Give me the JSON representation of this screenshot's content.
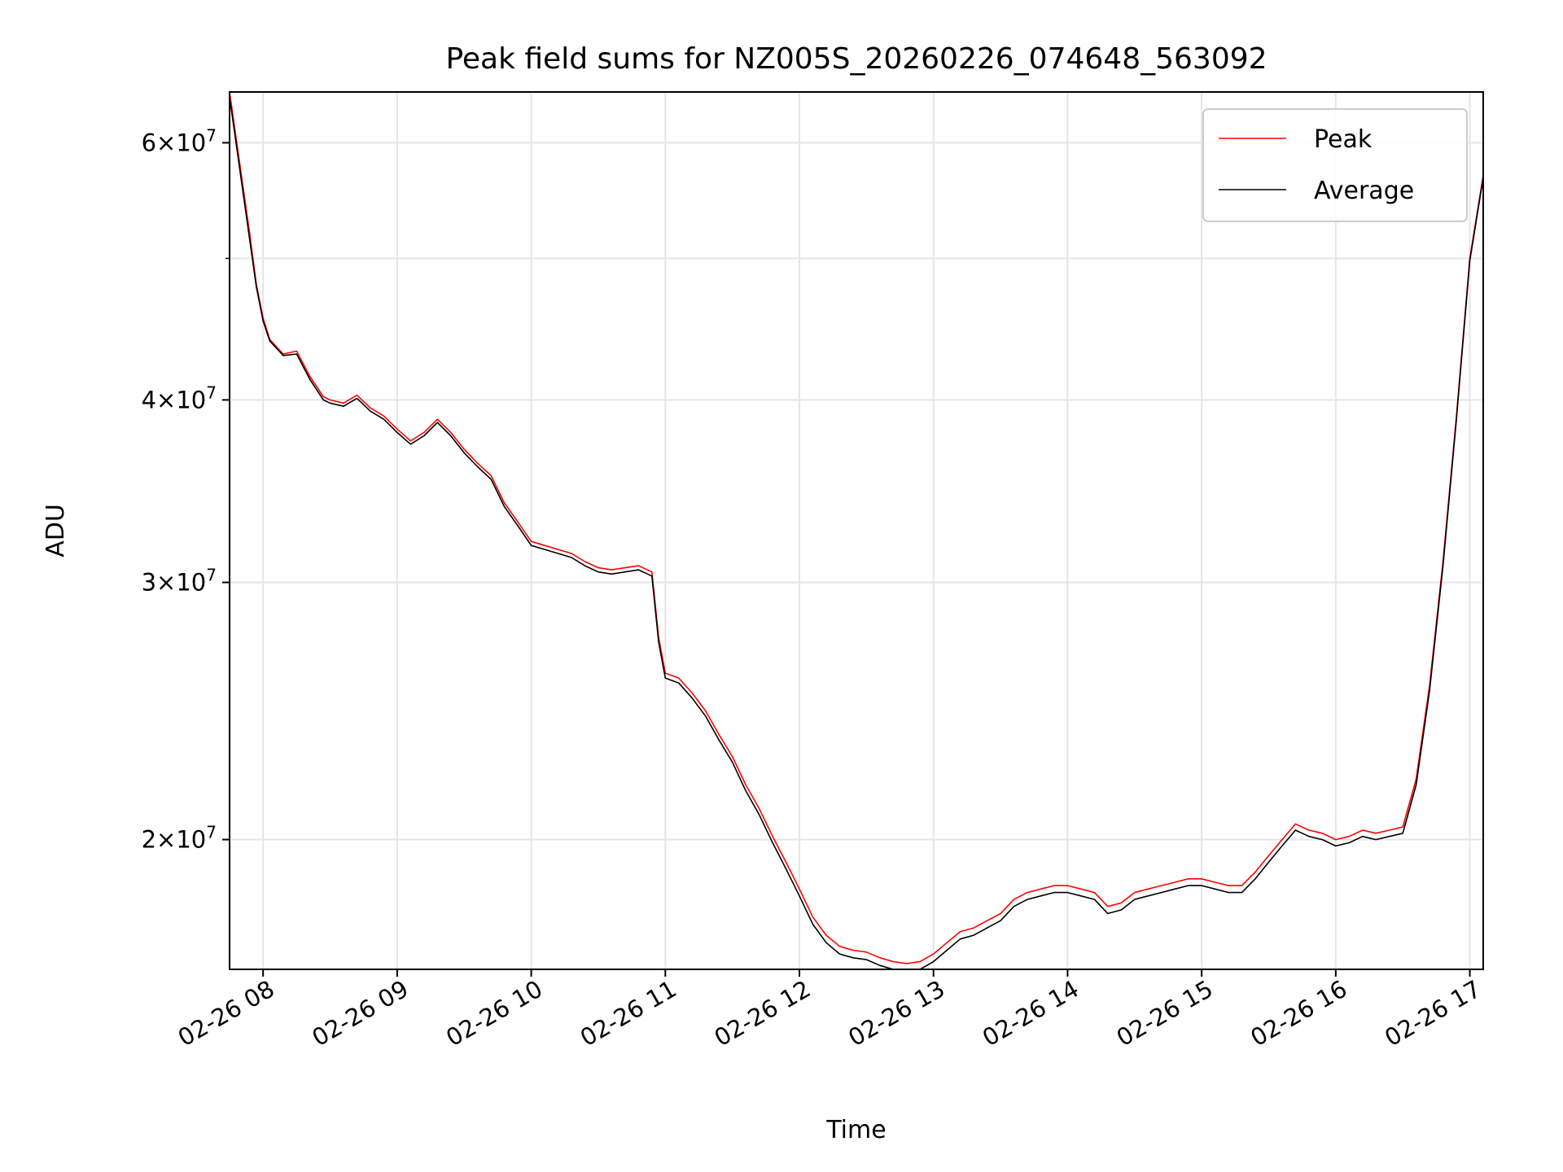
{
  "chart_data": {
    "type": "line",
    "title": "Peak field sums for NZ005S_20260226_074648_563092",
    "xlabel": "Time",
    "ylabel": "ADU",
    "yscale": "log",
    "grid": true,
    "legend_position": "top-right",
    "xlim": [
      7.75,
      17.1
    ],
    "ylim": [
      16300000,
      65000000
    ],
    "x_ticks": [
      {
        "value": 8,
        "label": "02-26 08"
      },
      {
        "value": 9,
        "label": "02-26 09"
      },
      {
        "value": 10,
        "label": "02-26 10"
      },
      {
        "value": 11,
        "label": "02-26 11"
      },
      {
        "value": 12,
        "label": "02-26 12"
      },
      {
        "value": 13,
        "label": "02-26 13"
      },
      {
        "value": 14,
        "label": "02-26 14"
      },
      {
        "value": 15,
        "label": "02-26 15"
      },
      {
        "value": 16,
        "label": "02-26 16"
      },
      {
        "value": 17,
        "label": "02-26 17"
      }
    ],
    "y_ticks": [
      {
        "value": 20000000,
        "mantissa": "2",
        "base": "10",
        "exp": "7"
      },
      {
        "value": 30000000,
        "mantissa": "3",
        "base": "10",
        "exp": "7"
      },
      {
        "value": 40000000,
        "mantissa": "4",
        "base": "10",
        "exp": "7"
      },
      {
        "value": 60000000,
        "mantissa": "6",
        "base": "10",
        "exp": "7"
      }
    ],
    "y_minor_ticks": [
      50000000
    ],
    "series": [
      {
        "name": "Peak",
        "color": "#ff0000",
        "x": [
          7.75,
          7.85,
          7.9,
          7.95,
          8.0,
          8.05,
          8.1,
          8.15,
          8.25,
          8.35,
          8.45,
          8.5,
          8.6,
          8.7,
          8.8,
          8.9,
          9.0,
          9.1,
          9.2,
          9.3,
          9.4,
          9.5,
          9.6,
          9.7,
          9.8,
          9.9,
          10.0,
          10.1,
          10.2,
          10.3,
          10.4,
          10.5,
          10.6,
          10.7,
          10.8,
          10.9,
          10.95,
          11.0,
          11.1,
          11.2,
          11.3,
          11.4,
          11.5,
          11.6,
          11.7,
          11.8,
          11.9,
          12.0,
          12.1,
          12.2,
          12.3,
          12.4,
          12.5,
          12.6,
          12.7,
          12.8,
          12.9,
          13.0,
          13.1,
          13.2,
          13.3,
          13.4,
          13.5,
          13.6,
          13.7,
          13.8,
          13.9,
          14.0,
          14.1,
          14.2,
          14.3,
          14.4,
          14.5,
          14.6,
          14.7,
          14.8,
          14.9,
          15.0,
          15.1,
          15.2,
          15.3,
          15.4,
          15.5,
          15.6,
          15.7,
          15.8,
          15.9,
          16.0,
          16.1,
          16.2,
          16.3,
          16.4,
          16.5,
          16.6,
          16.7,
          16.8,
          16.9,
          17.0,
          17.1
        ],
        "y": [
          65000000,
          56000000,
          52000000,
          48000000,
          45500000,
          44000000,
          43500000,
          43000000,
          43200000,
          41500000,
          40200000,
          40000000,
          39800000,
          40300000,
          39500000,
          39000000,
          38200000,
          37500000,
          38000000,
          38800000,
          38000000,
          37000000,
          36200000,
          35500000,
          34000000,
          33000000,
          32000000,
          31800000,
          31600000,
          31400000,
          31000000,
          30700000,
          30600000,
          30700000,
          30800000,
          30500000,
          27500000,
          26000000,
          25800000,
          25200000,
          24500000,
          23600000,
          22800000,
          21800000,
          21000000,
          20100000,
          19300000,
          18500000,
          17700000,
          17200000,
          16900000,
          16800000,
          16750000,
          16600000,
          16500000,
          16450000,
          16500000,
          16700000,
          17000000,
          17300000,
          17400000,
          17600000,
          17800000,
          18200000,
          18400000,
          18500000,
          18600000,
          18600000,
          18500000,
          18400000,
          18000000,
          18100000,
          18400000,
          18500000,
          18600000,
          18700000,
          18800000,
          18800000,
          18700000,
          18600000,
          18600000,
          19000000,
          19500000,
          20000000,
          20500000,
          20300000,
          20200000,
          20000000,
          20100000,
          20300000,
          20200000,
          20300000,
          20400000,
          22000000,
          25500000,
          31000000,
          39000000,
          50000000,
          57000000
        ]
      },
      {
        "name": "Average",
        "color": "#000000",
        "x": [
          7.75,
          7.85,
          7.9,
          7.95,
          8.0,
          8.05,
          8.1,
          8.15,
          8.25,
          8.35,
          8.45,
          8.5,
          8.6,
          8.7,
          8.8,
          8.9,
          9.0,
          9.1,
          9.2,
          9.3,
          9.4,
          9.5,
          9.6,
          9.7,
          9.8,
          9.9,
          10.0,
          10.1,
          10.2,
          10.3,
          10.4,
          10.5,
          10.6,
          10.7,
          10.8,
          10.9,
          10.95,
          11.0,
          11.1,
          11.2,
          11.3,
          11.4,
          11.5,
          11.6,
          11.7,
          11.8,
          11.9,
          12.0,
          12.1,
          12.2,
          12.3,
          12.4,
          12.5,
          12.6,
          12.7,
          12.8,
          12.9,
          13.0,
          13.1,
          13.2,
          13.3,
          13.4,
          13.5,
          13.6,
          13.7,
          13.8,
          13.9,
          14.0,
          14.1,
          14.2,
          14.3,
          14.4,
          14.5,
          14.6,
          14.7,
          14.8,
          14.9,
          15.0,
          15.1,
          15.2,
          15.3,
          15.4,
          15.5,
          15.6,
          15.7,
          15.8,
          15.9,
          16.0,
          16.1,
          16.2,
          16.3,
          16.4,
          16.5,
          16.6,
          16.7,
          16.8,
          16.9,
          17.0,
          17.1
        ],
        "y": [
          64500000,
          55500000,
          51500000,
          47800000,
          45300000,
          43900000,
          43400000,
          42900000,
          43000000,
          41300000,
          40000000,
          39800000,
          39600000,
          40100000,
          39300000,
          38800000,
          38000000,
          37300000,
          37800000,
          38600000,
          37800000,
          36800000,
          36000000,
          35300000,
          33800000,
          32800000,
          31800000,
          31600000,
          31400000,
          31200000,
          30800000,
          30500000,
          30400000,
          30500000,
          30600000,
          30300000,
          27300000,
          25800000,
          25600000,
          25000000,
          24300000,
          23400000,
          22600000,
          21600000,
          20800000,
          19900000,
          19100000,
          18300000,
          17500000,
          17000000,
          16700000,
          16600000,
          16550000,
          16400000,
          16300000,
          16250000,
          16300000,
          16500000,
          16800000,
          17100000,
          17200000,
          17400000,
          17600000,
          18000000,
          18200000,
          18300000,
          18400000,
          18400000,
          18300000,
          18200000,
          17800000,
          17900000,
          18200000,
          18300000,
          18400000,
          18500000,
          18600000,
          18600000,
          18500000,
          18400000,
          18400000,
          18800000,
          19300000,
          19800000,
          20300000,
          20100000,
          20000000,
          19800000,
          19900000,
          20100000,
          20000000,
          20100000,
          20200000,
          21800000,
          25300000,
          30800000,
          38800000,
          49800000,
          56800000
        ]
      }
    ]
  }
}
